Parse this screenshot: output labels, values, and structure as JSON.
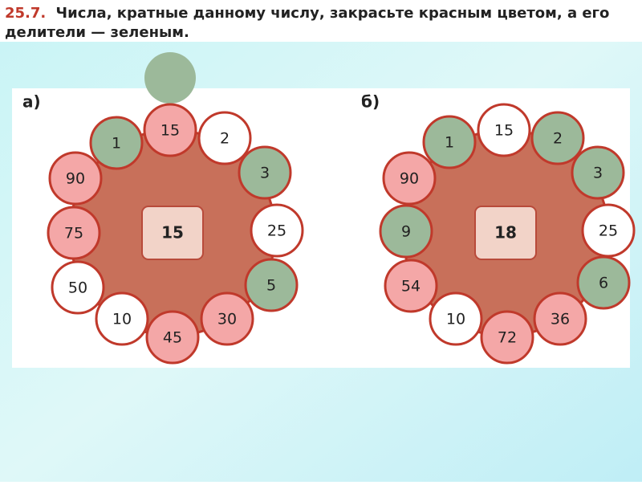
{
  "header": {
    "number": "25.7.",
    "line1": "Числа, кратные данному числу, закрасьте красным цветом, а его",
    "line2": "делители — зеленым."
  },
  "diagrams": [
    {
      "label": "а)",
      "center": "15",
      "nodes": [
        {
          "label": "1",
          "color": "#9cb99a"
        },
        {
          "label": "15",
          "color": "#f4a7a7"
        },
        {
          "label": "2",
          "color": "#ffffff"
        },
        {
          "label": "3",
          "color": "#9cb99a"
        },
        {
          "label": "25",
          "color": "#ffffff"
        },
        {
          "label": "5",
          "color": "#9cb99a"
        },
        {
          "label": "30",
          "color": "#f4a7a7"
        },
        {
          "label": "45",
          "color": "#f4a7a7"
        },
        {
          "label": "10",
          "color": "#ffffff"
        },
        {
          "label": "50",
          "color": "#ffffff"
        },
        {
          "label": "75",
          "color": "#f4a7a7"
        },
        {
          "label": "90",
          "color": "#f4a7a7"
        }
      ]
    },
    {
      "label": "б)",
      "center": "18",
      "nodes": [
        {
          "label": "1",
          "color": "#9cb99a"
        },
        {
          "label": "15",
          "color": "#ffffff"
        },
        {
          "label": "2",
          "color": "#9cb99a"
        },
        {
          "label": "3",
          "color": "#9cb99a"
        },
        {
          "label": "25",
          "color": "#ffffff"
        },
        {
          "label": "6",
          "color": "#9cb99a"
        },
        {
          "label": "36",
          "color": "#f4a7a7"
        },
        {
          "label": "72",
          "color": "#f4a7a7"
        },
        {
          "label": "10",
          "color": "#ffffff"
        },
        {
          "label": "54",
          "color": "#f4a7a7"
        },
        {
          "label": "9",
          "color": "#9cb99a"
        },
        {
          "label": "90",
          "color": "#f4a7a7"
        }
      ]
    }
  ]
}
